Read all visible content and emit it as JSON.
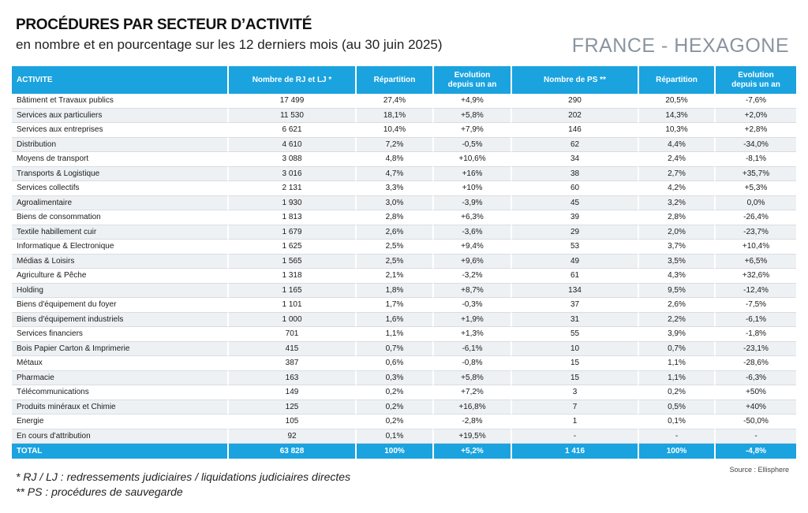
{
  "header": {
    "title": "PROCÉDURES PAR SECTEUR D’ACTIVITÉ",
    "subtitle": "en nombre et en pourcentage sur les 12 derniers mois (au 30 juin 2025)",
    "region": "FRANCE - HEXAGONE"
  },
  "table": {
    "columns": [
      "ACTIVITE",
      "Nombre de RJ et LJ *",
      "Répartition",
      "Evolution depuis un an",
      "Nombre de PS **",
      "Répartition",
      "Evolution depuis un an"
    ],
    "rows": [
      [
        "Bâtiment et Travaux publics",
        "17 499",
        "27,4%",
        "+4,9%",
        "290",
        "20,5%",
        "-7,6%"
      ],
      [
        "Services aux particuliers",
        "11 530",
        "18,1%",
        "+5,8%",
        "202",
        "14,3%",
        "+2,0%"
      ],
      [
        "Services aux entreprises",
        "6 621",
        "10,4%",
        "+7,9%",
        "146",
        "10,3%",
        "+2,8%"
      ],
      [
        "Distribution",
        "4 610",
        "7,2%",
        "-0,5%",
        "62",
        "4,4%",
        "-34,0%"
      ],
      [
        "Moyens de transport",
        "3 088",
        "4,8%",
        "+10,6%",
        "34",
        "2,4%",
        "-8,1%"
      ],
      [
        "Transports & Logistique",
        "3 016",
        "4,7%",
        "+16%",
        "38",
        "2,7%",
        "+35,7%"
      ],
      [
        "Services collectifs",
        "2 131",
        "3,3%",
        "+10%",
        "60",
        "4,2%",
        "+5,3%"
      ],
      [
        "Agroalimentaire",
        "1 930",
        "3,0%",
        "-3,9%",
        "45",
        "3,2%",
        "0,0%"
      ],
      [
        "Biens de consommation",
        "1 813",
        "2,8%",
        "+6,3%",
        "39",
        "2,8%",
        "-26,4%"
      ],
      [
        "Textile habillement cuir",
        "1 679",
        "2,6%",
        "-3,6%",
        "29",
        "2,0%",
        "-23,7%"
      ],
      [
        "Informatique & Electronique",
        "1 625",
        "2,5%",
        "+9,4%",
        "53",
        "3,7%",
        "+10,4%"
      ],
      [
        "Médias & Loisirs",
        "1 565",
        "2,5%",
        "+9,6%",
        "49",
        "3,5%",
        "+6,5%"
      ],
      [
        "Agriculture & Pêche",
        "1 318",
        "2,1%",
        "-3,2%",
        "61",
        "4,3%",
        "+32,6%"
      ],
      [
        "Holding",
        "1 165",
        "1,8%",
        "+8,7%",
        "134",
        "9,5%",
        "-12,4%"
      ],
      [
        "Biens d'équipement du foyer",
        "1 101",
        "1,7%",
        "-0,3%",
        "37",
        "2,6%",
        "-7,5%"
      ],
      [
        "Biens d'équipement industriels",
        "1 000",
        "1,6%",
        "+1,9%",
        "31",
        "2,2%",
        "-6,1%"
      ],
      [
        "Services financiers",
        "701",
        "1,1%",
        "+1,3%",
        "55",
        "3,9%",
        "-1,8%"
      ],
      [
        "Bois Papier Carton & Imprimerie",
        "415",
        "0,7%",
        "-6,1%",
        "10",
        "0,7%",
        "-23,1%"
      ],
      [
        "Métaux",
        "387",
        "0,6%",
        "-0,8%",
        "15",
        "1,1%",
        "-28,6%"
      ],
      [
        "Pharmacie",
        "163",
        "0,3%",
        "+5,8%",
        "15",
        "1,1%",
        "-6,3%"
      ],
      [
        "Télécommunications",
        "149",
        "0,2%",
        "+7,2%",
        "3",
        "0,2%",
        "+50%"
      ],
      [
        "Produits minéraux et Chimie",
        "125",
        "0,2%",
        "+16,8%",
        "7",
        "0,5%",
        "+40%"
      ],
      [
        "Energie",
        "105",
        "0,2%",
        "-2,8%",
        "1",
        "0,1%",
        "-50,0%"
      ],
      [
        "En cours d'attribution",
        "92",
        "0,1%",
        "+19,5%",
        "-",
        "-",
        "-"
      ]
    ],
    "total": [
      "TOTAL",
      "63 828",
      "100%",
      "+5,2%",
      "1 416",
      "100%",
      "-4,8%"
    ]
  },
  "footer": {
    "note1": "* RJ / LJ : redressements judiciaires / liquidations judiciaires directes",
    "note2": "** PS : procédures de sauvegarde",
    "source": "Source : Ellisphere"
  },
  "colors": {
    "header_bg": "#1aa3df",
    "stripe": "#eef1f4",
    "region_text": "#8a94a0"
  }
}
